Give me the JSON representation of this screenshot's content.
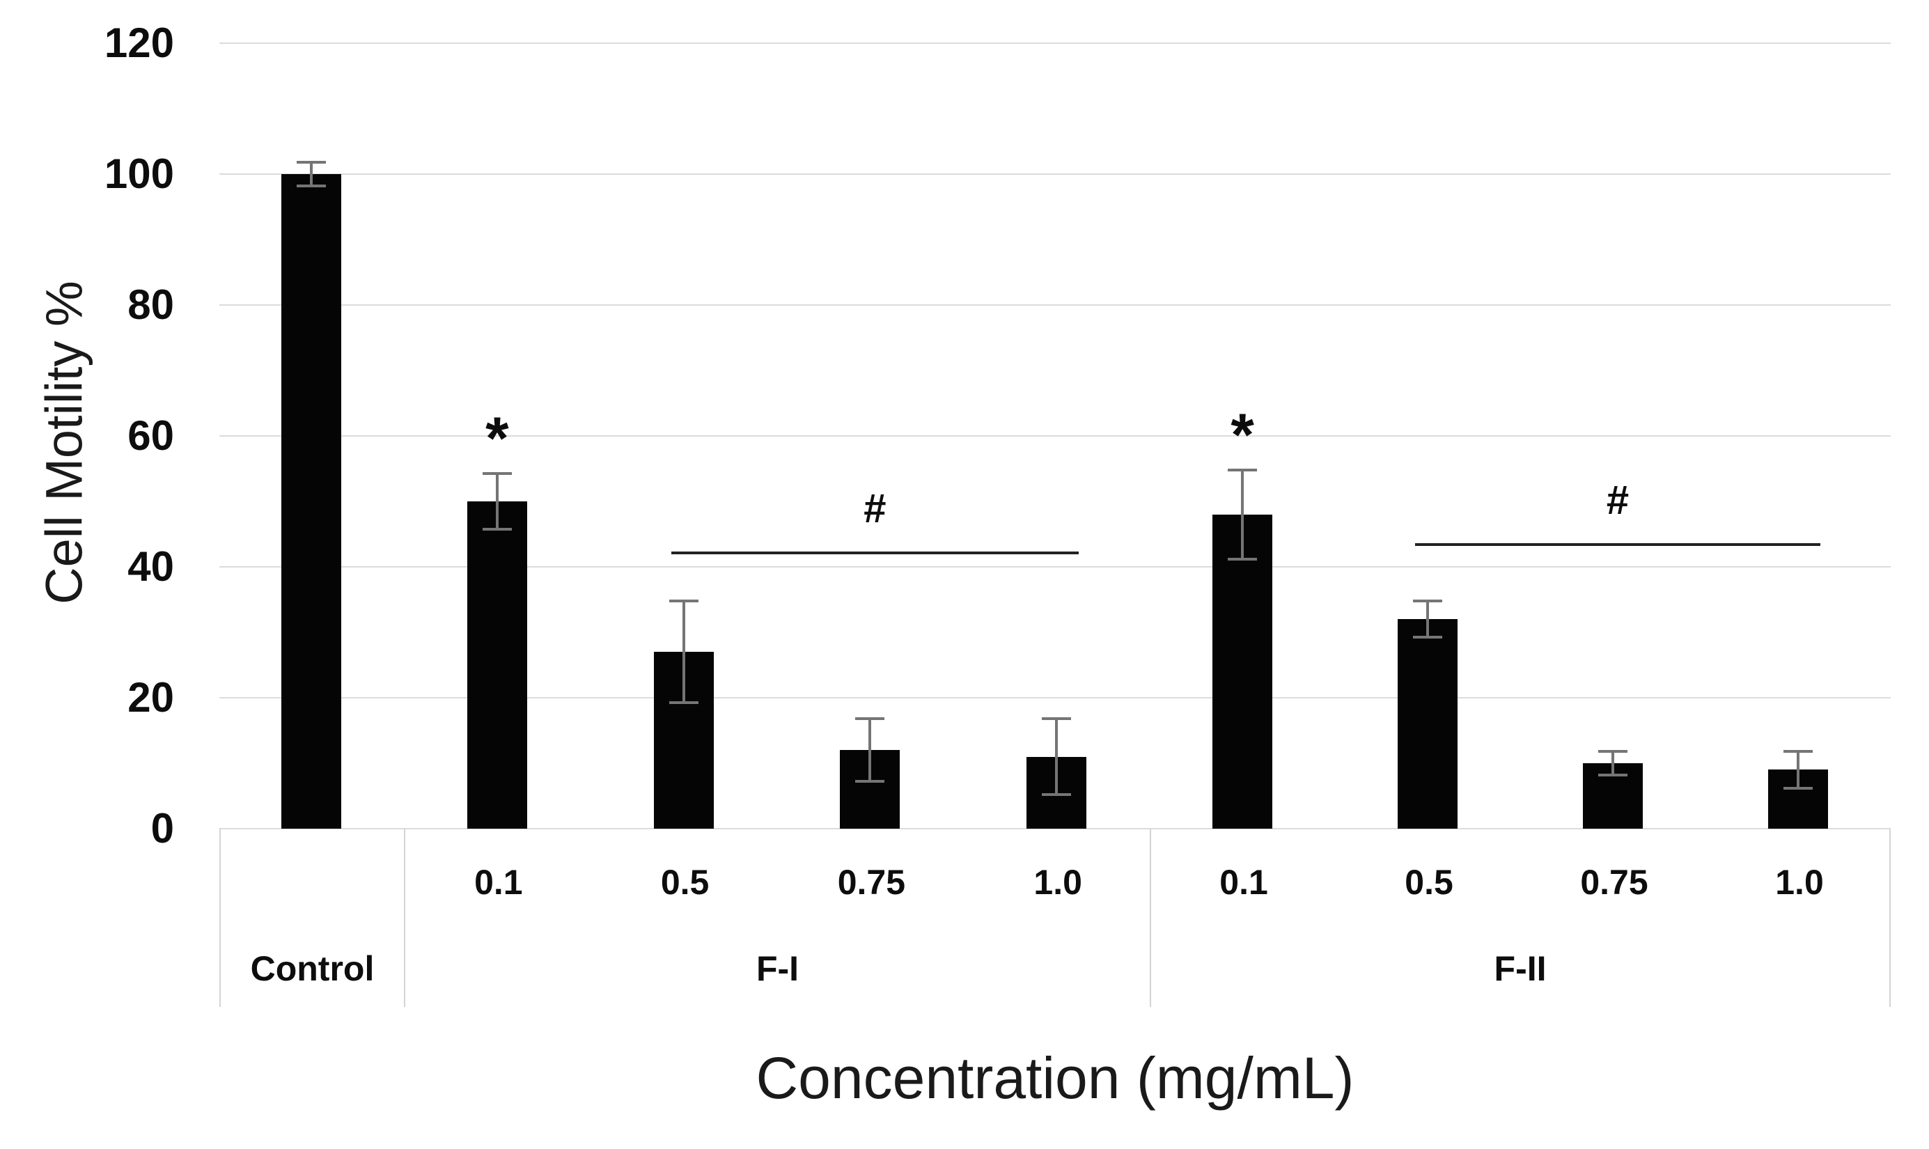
{
  "chart_data": {
    "type": "bar",
    "title": "",
    "ylabel": "Cell Motility %",
    "xlabel": "Concentration (mg/mL)",
    "ylim": [
      0,
      120
    ],
    "yticks": [
      0,
      20,
      40,
      60,
      80,
      100,
      120
    ],
    "grid": true,
    "legend": "none",
    "colors": {
      "bar": "#050505",
      "error_bar": "#757575",
      "gridline": "#dcdcdc",
      "category_line": "#d4d4d4",
      "bracket_line": "#222222",
      "text": "#0d0d0d"
    },
    "groups": [
      {
        "label": "Control",
        "bars": [
          {
            "label": "",
            "value": 100,
            "error": 2,
            "sig": ""
          }
        ]
      },
      {
        "label": "F-I",
        "bars": [
          {
            "label": "0.1",
            "value": 50,
            "error": 4.5,
            "sig": "*"
          },
          {
            "label": "0.5",
            "value": 27,
            "error": 8,
            "sig": ""
          },
          {
            "label": "0.75",
            "value": 12,
            "error": 5,
            "sig": ""
          },
          {
            "label": "1.0",
            "value": 11,
            "error": 6,
            "sig": ""
          }
        ],
        "bracket": {
          "label": "#",
          "from_bar": 1,
          "to_bar": 3,
          "y_value": 42.3
        }
      },
      {
        "label": "F-II",
        "bars": [
          {
            "label": "0.1",
            "value": 48,
            "error": 7,
            "sig": "*"
          },
          {
            "label": "0.5",
            "value": 32,
            "error": 3,
            "sig": ""
          },
          {
            "label": "0.75",
            "value": 10,
            "error": 2,
            "sig": ""
          },
          {
            "label": "1.0",
            "value": 9,
            "error": 3,
            "sig": ""
          }
        ],
        "bracket": {
          "label": "#",
          "from_bar": 1,
          "to_bar": 3,
          "y_value": 43.6
        }
      }
    ],
    "group_width_fractions": [
      0.1104,
      0.4463,
      0.4433
    ]
  }
}
